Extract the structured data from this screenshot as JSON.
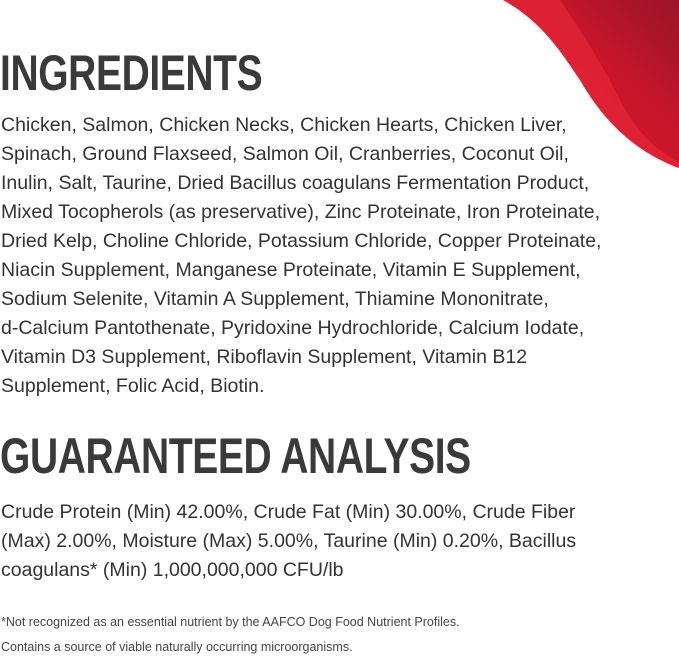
{
  "ingredients": {
    "heading": "INGREDIENTS",
    "lines": [
      "Chicken, Salmon, Chicken Necks, Chicken Hearts, Chicken Liver,",
      "Spinach, Ground Flaxseed, Salmon Oil, Cranberries, Coconut Oil,",
      "Inulin, Salt, Taurine, Dried Bacillus coagulans Fermentation Product,",
      "Mixed Tocopherols (as preservative), Zinc Proteinate, Iron Proteinate,",
      "Dried Kelp, Choline Chloride, Potassium Chloride, Copper Proteinate,",
      "Niacin Supplement, Manganese Proteinate, Vitamin E Supplement,",
      "Sodium Selenite, Vitamin A Supplement, Thiamine Mononitrate,",
      "d-Calcium Pantothenate, Pyridoxine Hydrochloride, Calcium Iodate,",
      "Vitamin D3 Supplement, Riboflavin Supplement, Vitamin B12",
      "Supplement, Folic Acid, Biotin."
    ]
  },
  "analysis": {
    "heading": "GUARANTEED ANALYSIS",
    "lines": [
      "Crude Protein (Min) 42.00%, Crude Fat (Min) 30.00%, Crude Fiber",
      "(Max) 2.00%, Moisture (Max) 5.00%, Taurine (Min) 0.20%, Bacillus",
      "coagulans* (Min) 1,000,000,000 CFU/lb"
    ]
  },
  "footnotes": [
    "*Not recognized as an essential nutrient by the AAFCO Dog Food Nutrient Profiles.",
    "Contains a source of viable naturally occurring microorganisms."
  ],
  "colors": {
    "accent": "#e01a2e",
    "accent_dark": "#a0162a",
    "text": "#333333"
  }
}
